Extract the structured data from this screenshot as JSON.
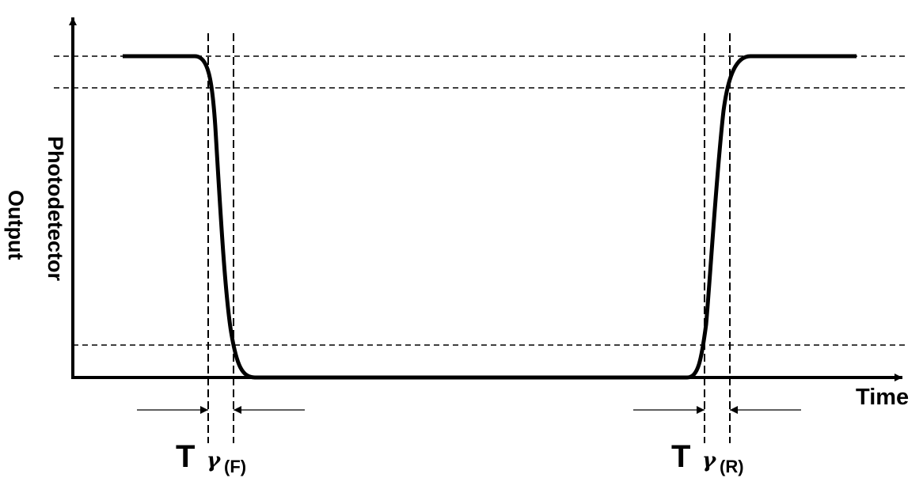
{
  "axes": {
    "x_label": "Time",
    "y_label_line1": "Photodetector",
    "y_label_line2": "Output"
  },
  "markers": {
    "fall": {
      "main": "T",
      "greek": "γ",
      "suffix": "(F)"
    },
    "rise": {
      "main": "T",
      "greek": "γ",
      "suffix": "(R)"
    }
  }
}
